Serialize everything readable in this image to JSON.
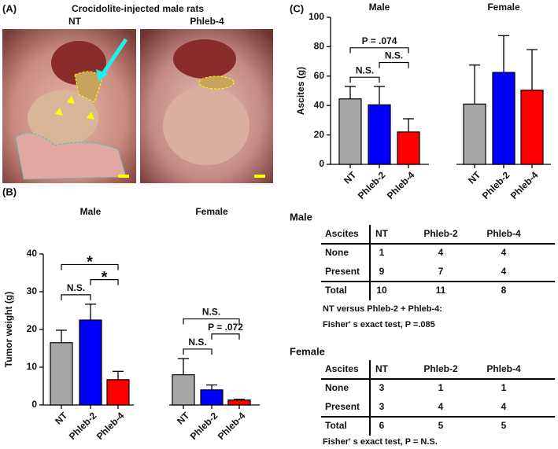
{
  "panel_a": {
    "label": "(A)",
    "title": "Crocidolite-injected male rats",
    "images": [
      "NT",
      "Phleb-4"
    ]
  },
  "chart_data": [
    {
      "type": "bar",
      "label": "(B)",
      "y_label": "Tumor weight (g)",
      "categories": [
        "NT",
        "Phleb-2",
        "Phleb-4"
      ],
      "colors": [
        "#a6a6a6",
        "#0000ff",
        "#ff0000"
      ],
      "ylim": [
        0,
        40
      ],
      "yticks": [
        0,
        10,
        20,
        30,
        40
      ],
      "groups": [
        {
          "name": "Male",
          "values": [
            16.5,
            22.5,
            6.7
          ],
          "errors": [
            3.3,
            4.2,
            2.2
          ],
          "brackets": [
            {
              "from": 0,
              "to": 1,
              "label": "N.S."
            },
            {
              "from": 1,
              "to": 2,
              "label": "*"
            },
            {
              "from": 0,
              "to": 2,
              "label": "*"
            }
          ]
        },
        {
          "name": "Female",
          "values": [
            8,
            4,
            1.3
          ],
          "errors": [
            4.3,
            1.3,
            0.2
          ],
          "brackets": [
            {
              "from": 0,
              "to": 1,
              "label": "N.S."
            },
            {
              "from": 1,
              "to": 2,
              "label": "P = .072"
            },
            {
              "from": 0,
              "to": 2,
              "label": "N.S."
            }
          ]
        }
      ]
    },
    {
      "type": "bar",
      "label": "(C)",
      "y_label": "Ascites (g)",
      "categories": [
        "NT",
        "Phleb-2",
        "Phleb-4"
      ],
      "colors": [
        "#a6a6a6",
        "#0000ff",
        "#ff0000"
      ],
      "ylim": [
        0,
        100
      ],
      "yticks": [
        0,
        20,
        40,
        60,
        80,
        100
      ],
      "groups": [
        {
          "name": "Male",
          "values": [
            44.5,
            40.5,
            22
          ],
          "errors": [
            8.5,
            12.5,
            9
          ],
          "brackets": [
            {
              "from": 0,
              "to": 1,
              "label": "N.S."
            },
            {
              "from": 1,
              "to": 2,
              "label": "N.S."
            },
            {
              "from": 0,
              "to": 2,
              "label": "P = .074"
            }
          ]
        },
        {
          "name": "Female",
          "values": [
            41,
            62.5,
            50.5
          ],
          "errors": [
            26.5,
            25,
            27.5
          ],
          "brackets": []
        }
      ]
    }
  ],
  "tables": [
    {
      "title": "Male",
      "header": [
        "Ascites",
        "NT",
        "Phleb-2",
        "Phleb-4"
      ],
      "rows": [
        [
          "None",
          1,
          4,
          4
        ],
        [
          "Present",
          9,
          7,
          4
        ],
        [
          "Total",
          10,
          11,
          8
        ]
      ],
      "notes": [
        "NT versus Phleb-2 + Phleb-4:",
        "Fisher' s exact test, P =.085"
      ]
    },
    {
      "title": "Female",
      "header": [
        "Ascites",
        "NT",
        "Phleb-2",
        "Phleb-4"
      ],
      "rows": [
        [
          "None",
          3,
          1,
          1
        ],
        [
          "Present",
          3,
          4,
          4
        ],
        [
          "Total",
          6,
          5,
          5
        ]
      ],
      "notes": [
        "Fisher' s exact test, P = N.S."
      ]
    }
  ]
}
